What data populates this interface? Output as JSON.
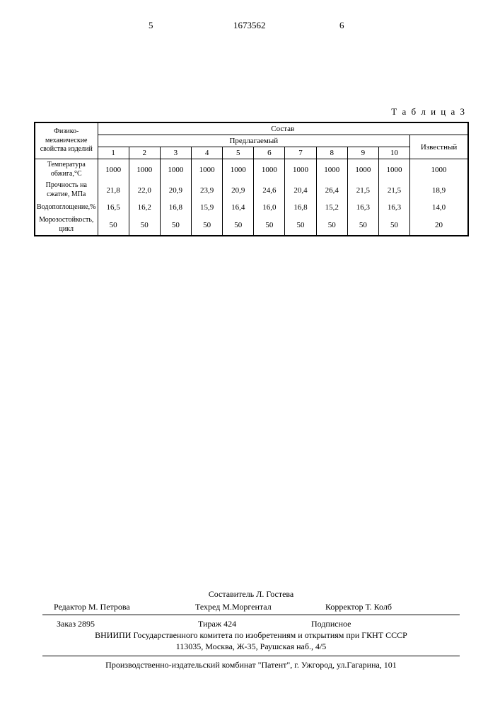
{
  "header": {
    "left_page": "5",
    "patent_number": "1673562",
    "right_page": "6"
  },
  "table": {
    "label": "Т а б л и ц а 3",
    "row_header_top": "Физико-механические свойства изделий",
    "top_group": "Состав",
    "sub_group": "Предлагаемый",
    "known_col": "Известный",
    "col_numbers": [
      "1",
      "2",
      "3",
      "4",
      "5",
      "6",
      "7",
      "8",
      "9",
      "10"
    ],
    "rows": [
      {
        "label": "Температура обжига,°С",
        "vals": [
          "1000",
          "1000",
          "1000",
          "1000",
          "1000",
          "1000",
          "1000",
          "1000",
          "1000",
          "1000"
        ],
        "known": "1000"
      },
      {
        "label": "Прочность на сжатие, МПа",
        "vals": [
          "21,8",
          "22,0",
          "20,9",
          "23,9",
          "20,9",
          "24,6",
          "20,4",
          "26,4",
          "21,5",
          "21,5"
        ],
        "known": "18,9"
      },
      {
        "label": "Водопоглощение,%",
        "vals": [
          "16,5",
          "16,2",
          "16,8",
          "15,9",
          "16,4",
          "16,0",
          "16,8",
          "15,2",
          "16,3",
          "16,3"
        ],
        "known": "14,0"
      },
      {
        "label": "Морозостойкость, цикл",
        "vals": [
          "50",
          "50",
          "50",
          "50",
          "50",
          "50",
          "50",
          "50",
          "50",
          "50"
        ],
        "known": "20"
      }
    ]
  },
  "footer": {
    "compiler": "Составитель Л. Гостева",
    "editor": "Редактор М. Петрова",
    "techred": "Техред М.Моргентал",
    "corrector": "Корректор Т. Колб",
    "order": "Заказ 2895",
    "print_run": "Тираж 424",
    "subscription": "Подписное",
    "org": "ВНИИПИ Государственного комитета по изобретениям и открытиям при ГКНТ СССР",
    "address1": "113035, Москва, Ж-35, Раушская наб., 4/5",
    "producer": "Производственно-издательский комбинат \"Патент\", г. Ужгород, ул.Гагарина, 101"
  }
}
